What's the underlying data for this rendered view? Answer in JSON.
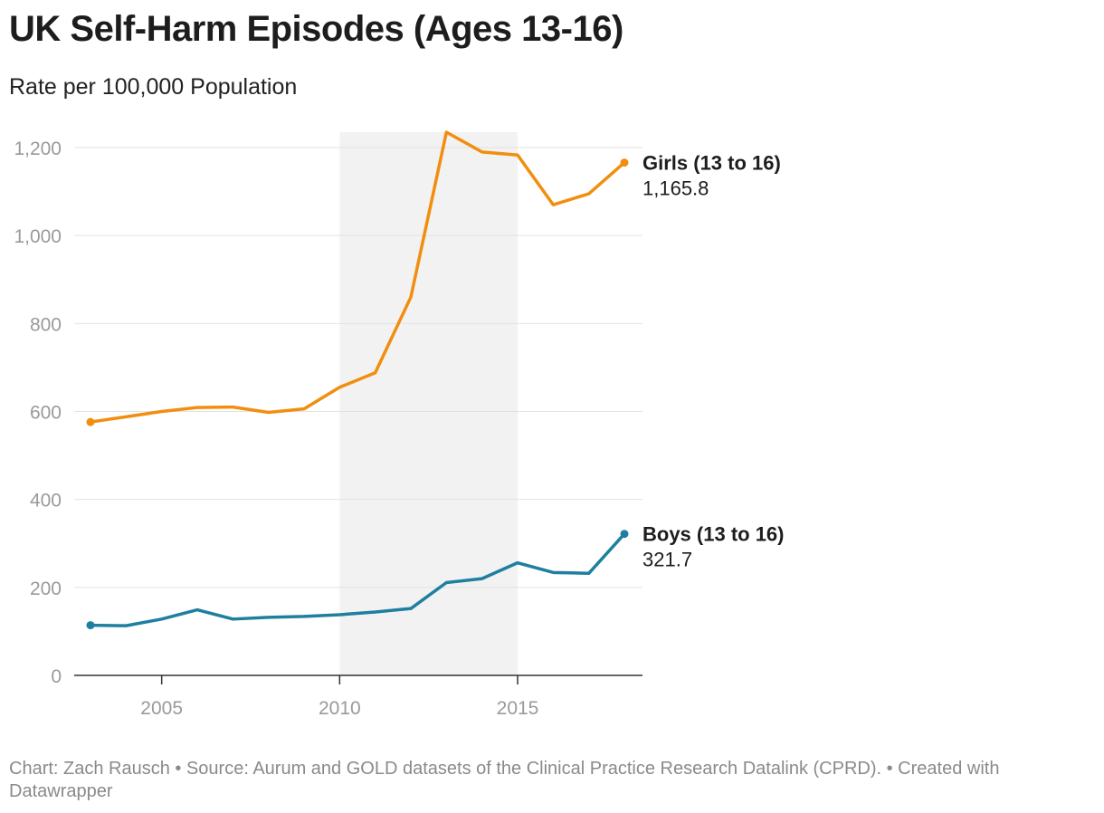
{
  "header": {
    "title": "UK Self-Harm Episodes (Ages 13-16)",
    "subtitle": "Rate per 100,000 Population"
  },
  "footer": {
    "text": "Chart: Zach Rausch • Source: Aurum and GOLD datasets of the Clinical Practice Research Datalink (CPRD). • Created with Datawrapper"
  },
  "chart_data": {
    "type": "line",
    "title": "UK Self-Harm Episodes (Ages 13-16)",
    "subtitle": "Rate per 100,000 Population",
    "x": [
      2003,
      2004,
      2005,
      2006,
      2007,
      2008,
      2009,
      2010,
      2011,
      2012,
      2013,
      2014,
      2015,
      2016,
      2017,
      2018
    ],
    "xlim": [
      2003,
      2018
    ],
    "ylim": [
      0,
      1235
    ],
    "x_ticks": [
      "2005",
      "2010",
      "2015"
    ],
    "y_ticks": [
      "0",
      "200",
      "400",
      "600",
      "800",
      "1,000",
      "1,200"
    ],
    "y_tick_values": [
      0,
      200,
      400,
      600,
      800,
      1000,
      1200
    ],
    "x_tick_values": [
      2005,
      2010,
      2015
    ],
    "highlight_range": [
      2010,
      2015
    ],
    "grid": true,
    "series": [
      {
        "name": "Girls (13 to 16)",
        "color": "#f28e0f",
        "end_label": "1,165.8",
        "values": [
          576,
          588,
          600,
          609,
          610,
          598,
          606,
          655,
          688,
          860,
          1235,
          1190,
          1183,
          1070,
          1095,
          1165.8
        ]
      },
      {
        "name": "Boys (13 to 16)",
        "color": "#1f7fa0",
        "end_label": "321.7",
        "values": [
          114,
          113,
          128,
          149,
          128,
          132,
          134,
          138,
          144,
          152,
          211,
          220,
          256,
          234,
          232,
          321.7
        ]
      }
    ]
  }
}
